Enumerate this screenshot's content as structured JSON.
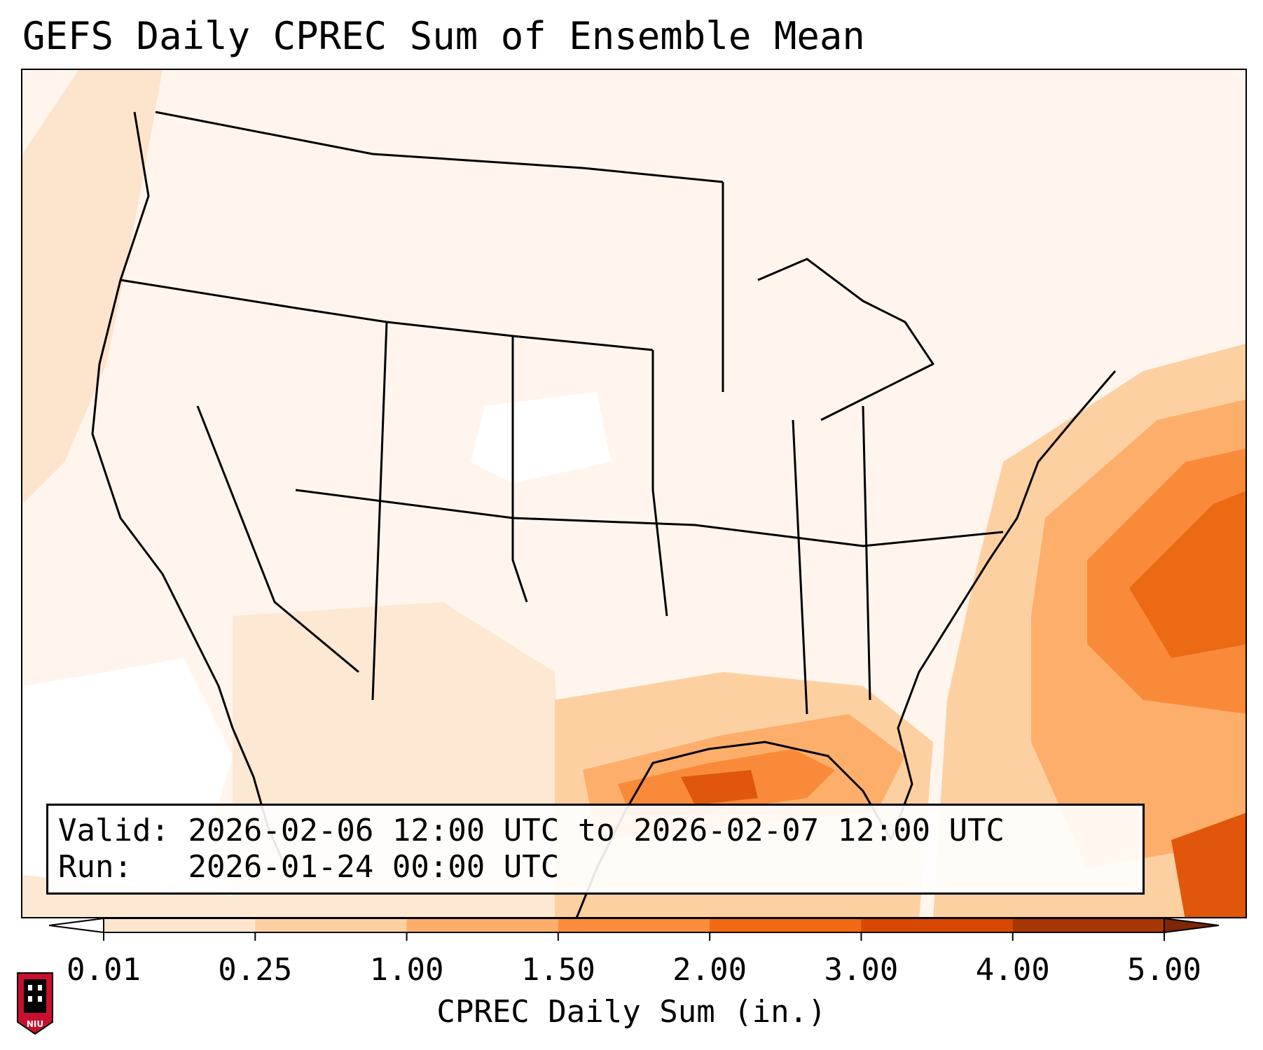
{
  "title": "GEFS Daily CPREC Sum of Ensemble Mean",
  "info": {
    "valid_label": "Valid:",
    "valid_value": "2026-02-06 12:00 UTC to 2026-02-07 12:00 UTC",
    "run_label": "Run:",
    "run_value": "2026-01-24 00:00 UTC"
  },
  "colorbar": {
    "label": "CPREC Daily Sum (in.)",
    "ticks": [
      "0.01",
      "0.25",
      "1.00",
      "1.50",
      "2.00",
      "3.00",
      "4.00",
      "5.00"
    ],
    "colors": [
      "#fff5eb",
      "#fee6ce",
      "#fdd0a2",
      "#fdae6b",
      "#fd8d3c",
      "#f16913",
      "#d94801",
      "#a63603"
    ]
  },
  "logo": {
    "text": "NIU",
    "colors": {
      "shield": "#c8102e",
      "tower": "#000000"
    }
  }
}
